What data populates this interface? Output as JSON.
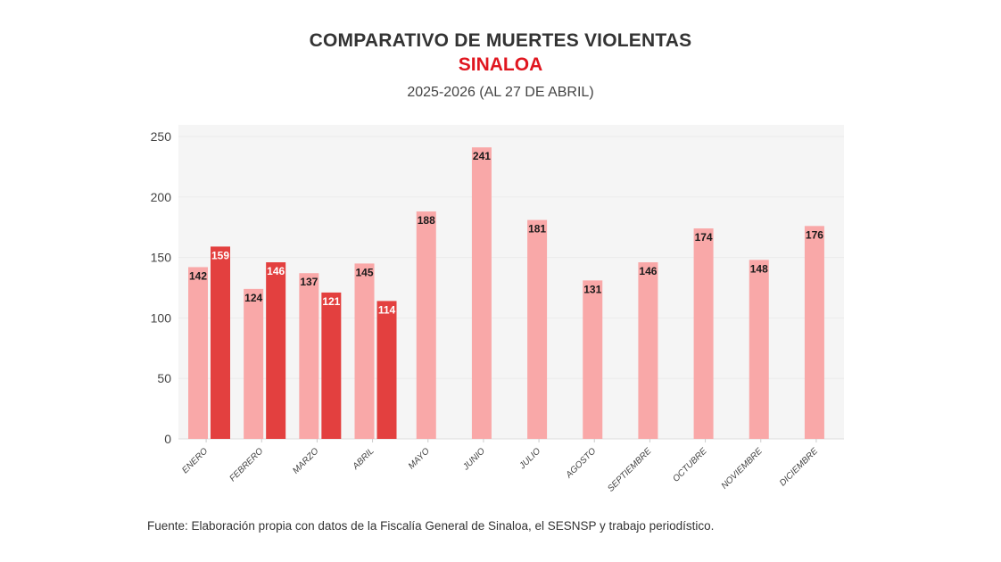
{
  "header": {
    "title": "COMPARATIVO DE MUERTES VIOLENTAS",
    "subtitle": "SINALOA",
    "period": "2025-2026 (AL 27 DE ABRIL)"
  },
  "footer": {
    "source": "Fuente: Elaboración propia con datos de la Fiscalía General de Sinaloa, el SESNSP y trabajo periodístico."
  },
  "chart_data": {
    "type": "bar",
    "title": "COMPARATIVO DE MUERTES VIOLENTAS",
    "subtitle": "SINALOA — 2025-2026 (AL 27 DE ABRIL)",
    "xlabel": "",
    "ylabel": "",
    "ylim": [
      0,
      250
    ],
    "yticks": [
      0,
      50,
      100,
      150,
      200,
      250
    ],
    "grid": true,
    "legend": "none",
    "categories": [
      "ENERO",
      "FEBRERO",
      "MARZO",
      "ABRIL",
      "MAYO",
      "JUNIO",
      "JULIO",
      "AGOSTO",
      "SEPTIEMBRE",
      "OCTUBRE",
      "NOVIEMBRE",
      "DICIEMBRE"
    ],
    "series": [
      {
        "name": "2025",
        "color": "#f9a8a8",
        "label_color": "#1a1a1a",
        "values": [
          142,
          124,
          137,
          145,
          188,
          241,
          181,
          131,
          146,
          174,
          148,
          176
        ]
      },
      {
        "name": "2026",
        "color": "#e3403f",
        "label_color": "#ffffff",
        "values": [
          159,
          146,
          121,
          114,
          null,
          null,
          null,
          null,
          null,
          null,
          null,
          null
        ]
      }
    ]
  }
}
